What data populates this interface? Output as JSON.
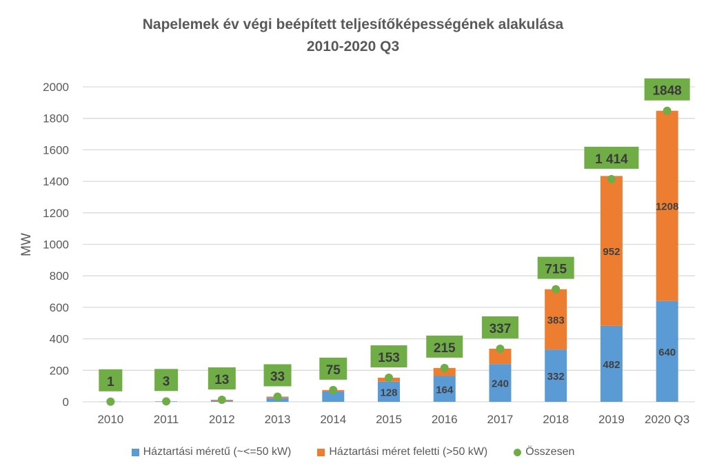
{
  "chart_data": {
    "type": "bar",
    "stacked": true,
    "title": "Napelemek év végi beépített teljesítőképességének alakulása",
    "subtitle": "2010-2020 Q3",
    "xlabel": "",
    "ylabel": "MW",
    "ylim": [
      0,
      2000
    ],
    "yticks": [
      0,
      200,
      400,
      600,
      800,
      1000,
      1200,
      1400,
      1600,
      1800,
      2000
    ],
    "grid": true,
    "legend_position": "bottom",
    "categories": [
      "2010",
      "2011",
      "2012",
      "2013",
      "2014",
      "2015",
      "2016",
      "2017",
      "2018",
      "2019",
      "2020 Q3"
    ],
    "series": [
      {
        "name": "Háztartási méretű (~<=50 kW)",
        "color": "#5b9bd5",
        "values": [
          1,
          3,
          8,
          25,
          66,
          128,
          164,
          240,
          332,
          482,
          640
        ],
        "labels": [
          null,
          null,
          null,
          null,
          null,
          "128",
          "164",
          "240",
          "332",
          "482",
          "640"
        ]
      },
      {
        "name": "Háztartási méret feletti (>50 kW)",
        "color": "#ed7d31",
        "values": [
          0,
          0,
          5,
          8,
          9,
          25,
          51,
          97,
          383,
          952,
          1208
        ],
        "labels": [
          null,
          null,
          null,
          null,
          null,
          null,
          null,
          null,
          "383",
          "952",
          "1208"
        ]
      },
      {
        "name": "Összesen",
        "color": "#70ad47",
        "type": "scatter",
        "values": [
          1,
          3,
          13,
          33,
          75,
          153,
          215,
          337,
          715,
          1414,
          1848
        ],
        "labels": [
          "1",
          "3",
          "13",
          "33",
          "75",
          "153",
          "215",
          "337",
          "715",
          "1 414",
          "1848"
        ]
      }
    ]
  }
}
